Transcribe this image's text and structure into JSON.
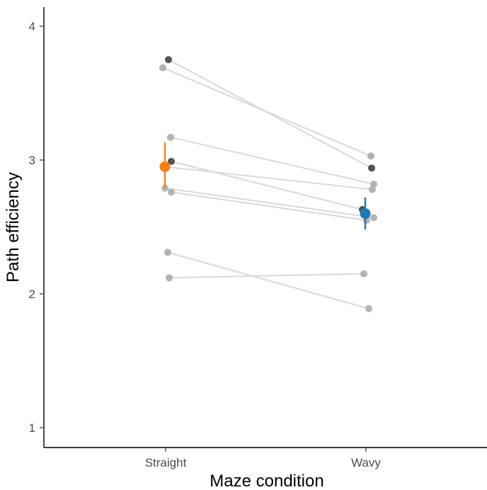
{
  "chart_data": {
    "type": "scatter",
    "title": "",
    "xlabel": "Maze condition",
    "ylabel": "Path efficiency",
    "categories": [
      "Straight",
      "Wavy"
    ],
    "ylim": [
      0.85,
      4.15
    ],
    "yticks": [
      1,
      2,
      3,
      4
    ],
    "grid": false,
    "legend": "none",
    "colors": {
      "participant_light": "#b3b3b3",
      "participant_dark": "#555555",
      "line": "#d9d9d9",
      "mean_straight": "#f57f17",
      "mean_wavy": "#1f77b4",
      "axis": "#000000"
    },
    "participants": [
      {
        "straight": 3.75,
        "wavy": 2.94,
        "dark": true
      },
      {
        "straight": 3.69,
        "wavy": 3.03,
        "dark": false
      },
      {
        "straight": 3.17,
        "wavy": 2.82,
        "dark": false
      },
      {
        "straight": 2.99,
        "wavy": 2.63,
        "dark": true
      },
      {
        "straight": 2.95,
        "wavy": 2.78,
        "dark": false
      },
      {
        "straight": 2.79,
        "wavy": 2.57,
        "dark": false
      },
      {
        "straight": 2.76,
        "wavy": 2.55,
        "dark": false
      },
      {
        "straight": 2.31,
        "wavy": 1.89,
        "dark": false
      },
      {
        "straight": 2.12,
        "wavy": 2.15,
        "dark": false
      }
    ],
    "means": [
      {
        "category": "Straight",
        "mean": 2.95,
        "lower": 2.79,
        "upper": 3.13,
        "color": "#f57f17"
      },
      {
        "category": "Wavy",
        "mean": 2.6,
        "lower": 2.48,
        "upper": 2.72,
        "color": "#1f77b4"
      }
    ]
  }
}
